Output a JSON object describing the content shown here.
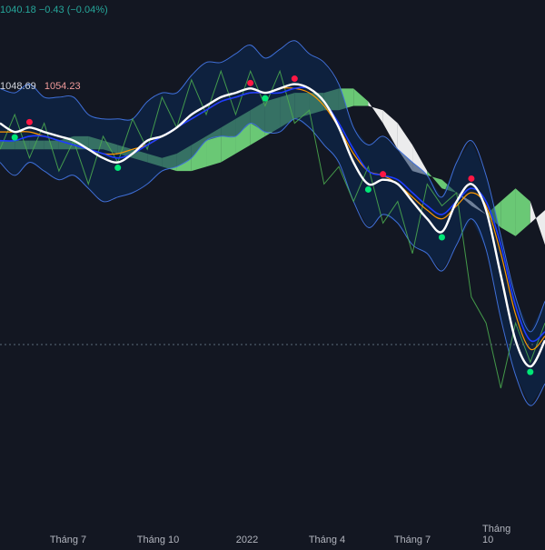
{
  "header": {
    "price_line": "1040.18  −0.43 (−0.04%)",
    "indicator_values": [
      "1048.69",
      "1054.23"
    ]
  },
  "colors": {
    "background": "#131722",
    "price": "#ffffff",
    "ma_blue": "#1e3cff",
    "ma_orange": "#ff9800",
    "envelope": "#3f6fd8",
    "lagging": "#4caf50",
    "cloud_bull": "#6fd27a",
    "cloud_bear": "#ffffff",
    "signal_buy": "#00e676",
    "signal_sell": "#ff1744"
  },
  "chart_data": {
    "type": "line",
    "x_tick_labels": [
      "Tháng 7",
      "Tháng 10",
      "2022",
      "Tháng 4",
      "Tháng 7",
      "Tháng 10"
    ],
    "y_axis_visible": false,
    "grid": false,
    "legend": "none",
    "series": [
      {
        "values": [
          10,
          8,
          9,
          8,
          7,
          6,
          4,
          2,
          1,
          3,
          6,
          7,
          9,
          12,
          14,
          16,
          17,
          18,
          17,
          18,
          19,
          18,
          15,
          9,
          1,
          -4,
          -3,
          -4,
          -8,
          -12,
          -15,
          -8,
          -4,
          -10,
          -25,
          -40,
          -46,
          -40
        ]
      },
      {
        "values": [
          6,
          6,
          7,
          7,
          6,
          5,
          4,
          3,
          2,
          3,
          5,
          7,
          9,
          11,
          13,
          15,
          16,
          17,
          17,
          17,
          18,
          18,
          15,
          10,
          4,
          -1,
          -2,
          -3,
          -6,
          -9,
          -11,
          -8,
          -5,
          -8,
          -18,
          -32,
          -40,
          -38
        ]
      },
      {
        "values": [
          8,
          8,
          8,
          7,
          6,
          5,
          4,
          3,
          3,
          4,
          5,
          7,
          9,
          11,
          13,
          15,
          16,
          17,
          17,
          18,
          18,
          17,
          14,
          9,
          3,
          -1,
          -2,
          -4,
          -7,
          -10,
          -12,
          -9,
          -6,
          -9,
          -20,
          -34,
          -42,
          -39
        ]
      }
    ],
    "x_min": 0,
    "x_max": 37,
    "y_range": [
      -60,
      30
    ]
  }
}
